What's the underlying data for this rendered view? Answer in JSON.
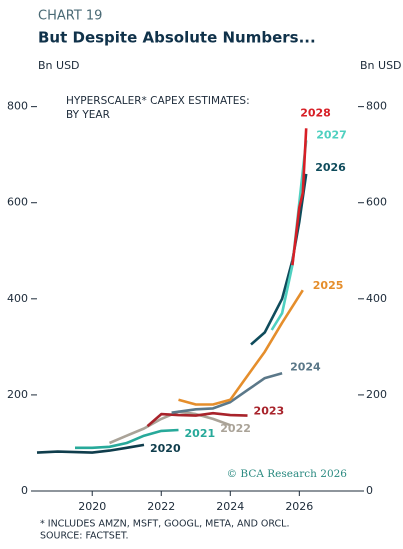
{
  "chart_data": {
    "type": "line",
    "chart_number": "CHART 19",
    "title": "But Despite Absolute Numbers...",
    "y_label": "Bn USD",
    "y2_label": "Bn USD",
    "annotation": [
      "HYPERSCALER* CAPEX ESTIMATES:",
      "BY YEAR"
    ],
    "credit": "© BCA Research 2026",
    "footnotes": [
      "* INCLUDES AMZN, MSFT, GOOGL, META, AND ORCL.",
      "SOURCE: FACTSET."
    ],
    "xlim": [
      2018.4,
      2027.7
    ],
    "xticks": [
      2020,
      2022,
      2024,
      2026
    ],
    "ylim": [
      0,
      870
    ],
    "yticks": [
      0,
      200,
      400,
      600,
      800
    ],
    "y2lim": [
      0,
      870
    ],
    "y2ticks": [
      0,
      200,
      400,
      600,
      800
    ],
    "series": [
      {
        "name": "2020",
        "color": "#0f3d4c",
        "x": [
          2018.4,
          2019,
          2019.5,
          2020,
          2020.5,
          2021,
          2021.5
        ],
        "values": [
          80,
          82,
          81,
          80,
          84,
          90,
          96
        ]
      },
      {
        "name": "2021",
        "color": "#27a99a",
        "x": [
          2019.5,
          2020,
          2020.5,
          2021,
          2021.5,
          2022,
          2022.5
        ],
        "values": [
          90,
          90,
          92,
          100,
          115,
          125,
          127
        ]
      },
      {
        "name": "2022",
        "color": "#aaa398",
        "x": [
          2020.5,
          2021,
          2021.5,
          2022,
          2022.5,
          2023,
          2023.5,
          2024
        ],
        "values": [
          100,
          115,
          130,
          150,
          165,
          160,
          150,
          137
        ]
      },
      {
        "name": "2023",
        "color": "#a8232b",
        "x": [
          2021.6,
          2022,
          2022.5,
          2023,
          2023.5,
          2024,
          2024.5
        ],
        "values": [
          135,
          160,
          158,
          157,
          162,
          158,
          157
        ]
      },
      {
        "name": "2024",
        "color": "#5b7889",
        "x": [
          2022.3,
          2023,
          2023.5,
          2024,
          2024.5,
          2025,
          2025.5
        ],
        "values": [
          163,
          170,
          172,
          185,
          210,
          235,
          245
        ]
      },
      {
        "name": "2025",
        "color": "#e58e2c",
        "x": [
          2022.5,
          2023,
          2023.5,
          2024,
          2024.5,
          2025,
          2025.5,
          2026.1
        ],
        "values": [
          190,
          180,
          180,
          190,
          240,
          290,
          350,
          418
        ]
      },
      {
        "name": "2026",
        "color": "#0f4c5c",
        "x": [
          2024.6,
          2025,
          2025.5,
          2025.8,
          2026,
          2026.2
        ],
        "values": [
          305,
          330,
          400,
          480,
          560,
          660
        ]
      },
      {
        "name": "2027",
        "color": "#4fd0c0",
        "x": [
          2025.2,
          2025.5,
          2025.8,
          2026,
          2026.2
        ],
        "values": [
          335,
          370,
          470,
          600,
          730
        ]
      },
      {
        "name": "2028",
        "color": "#d71f26",
        "x": [
          2025.8,
          2025.9,
          2026,
          2026.1,
          2026.2
        ],
        "values": [
          470,
          530,
          590,
          620,
          755
        ]
      }
    ]
  }
}
